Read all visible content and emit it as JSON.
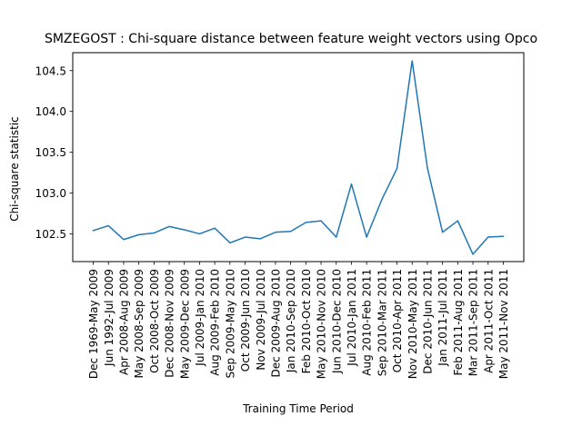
{
  "chart_data": {
    "type": "line",
    "title": "SMZEGOST : Chi-square distance between feature weight vectors using Opco",
    "xlabel": "Training Time Period",
    "ylabel": "Chi-square statistic",
    "ylim": [
      102.16,
      104.72
    ],
    "yticks": [
      "102.5",
      "103.0",
      "103.5",
      "104.0",
      "104.5"
    ],
    "grid": false,
    "categories": [
      "Dec 1969-May 2009",
      "Jun 1992-Jul 2009",
      "Apr 2008-Aug 2009",
      "May 2008-Sep 2009",
      "Oct 2008-Oct 2009",
      "Dec 2008-Nov 2009",
      "May 2009-Dec 2009",
      "Jul 2009-Jan 2010",
      "Aug 2009-Feb 2010",
      "Sep 2009-May 2010",
      "Oct 2009-Jun 2010",
      "Nov 2009-Jul 2010",
      "Dec 2009-Aug 2010",
      "Jan 2010-Sep 2010",
      "Feb 2010-Oct 2010",
      "May 2010-Nov 2010",
      "Jun 2010-Dec 2010",
      "Jul 2010-Jan 2011",
      "Aug 2010-Feb 2011",
      "Sep 2010-Mar 2011",
      "Oct 2010-Apr 2011",
      "Nov 2010-May 2011",
      "Dec 2010-Jun 2011",
      "Jan 2011-Jul 2011",
      "Feb 2011-Aug 2011",
      "Mar 2011-Sep 2011",
      "Apr 2011-Oct 2011",
      "May 2011-Nov 2011"
    ],
    "series": [
      {
        "color": "#1f77b4",
        "values": [
          102.54,
          102.6,
          102.43,
          102.49,
          102.51,
          102.59,
          102.55,
          102.5,
          102.57,
          102.39,
          102.46,
          102.44,
          102.52,
          102.53,
          102.64,
          102.66,
          102.46,
          103.11,
          102.46,
          102.92,
          103.3,
          104.62,
          103.31,
          102.52,
          102.66,
          102.25,
          102.46,
          102.47
        ]
      }
    ]
  }
}
